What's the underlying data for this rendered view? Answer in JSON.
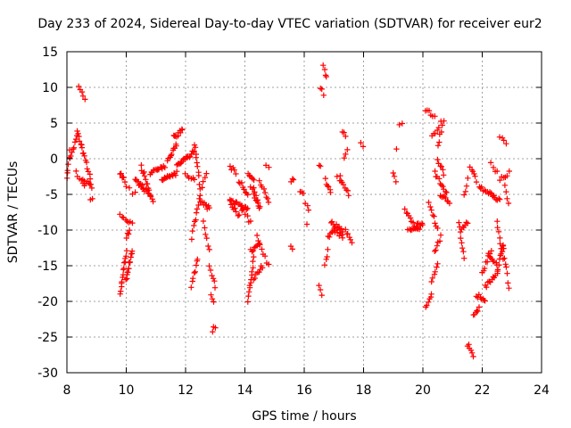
{
  "chart_data": {
    "type": "scatter",
    "title": "Day 233 of 2024, Sidereal Day-to-day VTEC variation (SDTVAR) for receiver eur2",
    "xlabel": "GPS time / hours",
    "ylabel": "SDTVAR / TECUs",
    "xlim": [
      8,
      24
    ],
    "ylim": [
      -30,
      15
    ],
    "xticks": [
      8,
      10,
      12,
      14,
      16,
      18,
      20,
      22,
      24
    ],
    "yticks": [
      15,
      10,
      5,
      0,
      -5,
      -10,
      -15,
      -20,
      -25,
      -30
    ],
    "grid": true,
    "marker": "+",
    "color": "#ff0000",
    "series": [
      {
        "name": "SDTVAR",
        "segments": [
          [
            8.0,
            8.1,
            -3,
            1,
            6
          ],
          [
            8.1,
            8.35,
            0,
            3,
            8
          ],
          [
            8.35,
            8.55,
            4,
            1,
            8
          ],
          [
            8.55,
            8.8,
            1,
            -3,
            8
          ],
          [
            8.3,
            8.6,
            -2,
            -4,
            6
          ],
          [
            8.55,
            8.85,
            -3,
            -4,
            8
          ],
          [
            8.4,
            8.6,
            10,
            8.6,
            5
          ],
          [
            8.8,
            8.85,
            -5.5,
            -5.5,
            2
          ],
          [
            9.8,
            9.95,
            -2,
            -3,
            6
          ],
          [
            9.8,
            10.2,
            -8,
            -9,
            8
          ],
          [
            9.8,
            10.0,
            -19,
            -13,
            14
          ],
          [
            10.0,
            10.2,
            -17,
            -13,
            14
          ],
          [
            10.0,
            10.1,
            -11,
            -10,
            4
          ],
          [
            10.0,
            10.3,
            -4,
            -5,
            4
          ],
          [
            10.3,
            10.8,
            -3,
            -5,
            18
          ],
          [
            10.5,
            10.9,
            -1,
            -6,
            14
          ],
          [
            10.8,
            11.3,
            -2,
            -1,
            14
          ],
          [
            11.2,
            11.7,
            -3,
            -2,
            16
          ],
          [
            11.4,
            11.7,
            0,
            2,
            10
          ],
          [
            11.6,
            11.9,
            3,
            4,
            10
          ],
          [
            11.7,
            12.3,
            -1,
            1,
            18
          ],
          [
            12.0,
            12.3,
            -2,
            -3,
            6
          ],
          [
            12.2,
            12.4,
            -18,
            -14,
            8
          ],
          [
            12.2,
            12.5,
            -11,
            -5,
            10
          ],
          [
            12.5,
            12.8,
            -6,
            -7,
            10
          ],
          [
            12.6,
            12.8,
            -9,
            -13,
            6
          ],
          [
            12.3,
            12.5,
            2,
            -4,
            10
          ],
          [
            12.55,
            12.7,
            -4,
            -2,
            4
          ],
          [
            12.8,
            13.0,
            -15,
            -18,
            6
          ],
          [
            12.85,
            12.95,
            -19,
            -20,
            3
          ],
          [
            12.9,
            13.0,
            -24,
            -23.5,
            3
          ],
          [
            13.5,
            13.7,
            -1,
            -2,
            5
          ],
          [
            13.5,
            14.1,
            -6,
            -7,
            16
          ],
          [
            13.5,
            13.8,
            -6,
            -8,
            8
          ],
          [
            13.8,
            14.1,
            -3,
            -5,
            8
          ],
          [
            13.9,
            14.2,
            -7,
            -9,
            6
          ],
          [
            14.1,
            14.3,
            -2,
            -3,
            6
          ],
          [
            14.2,
            14.5,
            -4,
            -7,
            8
          ],
          [
            14.1,
            14.3,
            -20,
            -14,
            12
          ],
          [
            14.2,
            14.5,
            -13,
            -12,
            8
          ],
          [
            14.3,
            14.6,
            -17,
            -15,
            8
          ],
          [
            14.3,
            14.5,
            -4,
            -7,
            6
          ],
          [
            14.5,
            14.8,
            -3,
            -6,
            8
          ],
          [
            14.4,
            14.8,
            -11,
            -15,
            8
          ],
          [
            14.7,
            14.8,
            -1,
            -1,
            2
          ],
          [
            15.55,
            15.65,
            -3,
            -3,
            3
          ],
          [
            15.55,
            15.6,
            -12.5,
            -12.5,
            2
          ],
          [
            15.85,
            15.95,
            -4.5,
            -5,
            3
          ],
          [
            16.05,
            16.15,
            -6.5,
            -7,
            3
          ],
          [
            16.1,
            16.15,
            -9,
            -9,
            1
          ],
          [
            16.5,
            16.6,
            -18,
            -19,
            3
          ],
          [
            16.5,
            16.55,
            -1,
            -1,
            2
          ],
          [
            16.55,
            16.65,
            10,
            9,
            3
          ],
          [
            16.65,
            16.75,
            13,
            11.5,
            4
          ],
          [
            16.7,
            16.9,
            -3,
            -5,
            6
          ],
          [
            16.7,
            16.8,
            -15,
            -13,
            4
          ],
          [
            16.8,
            17.0,
            -11,
            -10,
            6
          ],
          [
            16.9,
            17.3,
            -9,
            -10,
            10
          ],
          [
            17.0,
            17.3,
            -10,
            -11,
            8
          ],
          [
            17.2,
            17.5,
            -3,
            -5,
            8
          ],
          [
            17.3,
            17.4,
            4,
            3,
            3
          ],
          [
            17.35,
            17.45,
            0,
            1,
            3
          ],
          [
            17.4,
            17.6,
            -10,
            -12,
            6
          ],
          [
            17.1,
            17.2,
            -2.5,
            -2.5,
            2
          ],
          [
            17.9,
            18.0,
            2,
            2,
            2
          ],
          [
            19.0,
            19.1,
            -2,
            -3,
            3
          ],
          [
            19.1,
            19.15,
            1.5,
            1.5,
            1
          ],
          [
            19.2,
            19.3,
            5,
            5,
            2
          ],
          [
            19.4,
            19.8,
            -7,
            -10,
            10
          ],
          [
            19.5,
            19.9,
            -10,
            -9,
            10
          ],
          [
            19.8,
            20.0,
            -10,
            -9,
            6
          ],
          [
            20.1,
            20.3,
            -21,
            -19,
            6
          ],
          [
            20.1,
            20.4,
            7,
            6,
            6
          ],
          [
            20.3,
            20.6,
            3,
            5,
            6
          ],
          [
            20.3,
            20.5,
            -17,
            -15,
            6
          ],
          [
            20.4,
            20.6,
            -13,
            -11,
            6
          ],
          [
            20.2,
            20.5,
            -6,
            -10,
            8
          ],
          [
            20.4,
            20.8,
            -2,
            -5,
            10
          ],
          [
            20.5,
            20.7,
            0,
            -2,
            6
          ],
          [
            20.6,
            20.9,
            -5,
            -6,
            8
          ],
          [
            20.5,
            20.7,
            2,
            5,
            6
          ],
          [
            21.2,
            21.4,
            -9,
            -14,
            8
          ],
          [
            21.3,
            21.5,
            -10,
            -9,
            6
          ],
          [
            21.4,
            21.5,
            -5,
            -3,
            4
          ],
          [
            21.5,
            21.7,
            -26,
            -27.5,
            6
          ],
          [
            21.6,
            21.8,
            -1,
            -3,
            6
          ],
          [
            21.7,
            21.9,
            -22,
            -21,
            6
          ],
          [
            21.8,
            22.1,
            -19,
            -20,
            8
          ],
          [
            21.9,
            22.3,
            -4,
            -5,
            10
          ],
          [
            22.0,
            22.3,
            -16,
            -13,
            8
          ],
          [
            22.1,
            22.5,
            -18,
            -16,
            10
          ],
          [
            22.2,
            22.5,
            -13,
            -15,
            8
          ],
          [
            22.3,
            22.6,
            -5,
            -6,
            8
          ],
          [
            22.5,
            22.7,
            -16,
            -12,
            8
          ],
          [
            22.5,
            22.7,
            -9,
            -14,
            8
          ],
          [
            22.6,
            22.9,
            -3,
            -2,
            6
          ],
          [
            22.6,
            22.8,
            3,
            2,
            4
          ],
          [
            22.7,
            22.9,
            -12,
            -18,
            8
          ],
          [
            22.75,
            22.9,
            -4,
            -6,
            4
          ],
          [
            22.3,
            22.5,
            -0.5,
            -2,
            4
          ]
        ]
      }
    ]
  }
}
